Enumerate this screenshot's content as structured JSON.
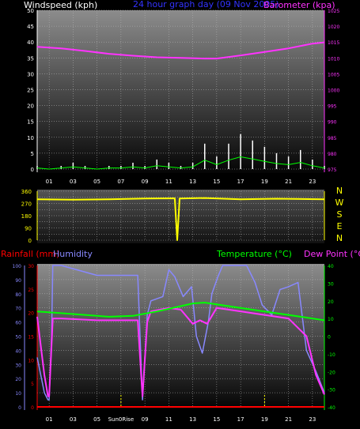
{
  "colors": {
    "background": "#000000",
    "wind": "#ffffff",
    "barometer": "#ff33ff",
    "direction": "#ffff00",
    "rainfall": "#ff0000",
    "humidity": "#8888ff",
    "temperature": "#00ff00",
    "dewpoint": "#ff33ff",
    "axis_white": "#ffffff",
    "axis_yellow": "#ffff00",
    "axis_green": "#00ff00",
    "axis_red": "#ff0000",
    "axis_blue": "#8888ff",
    "title_blue": "#3333ff"
  },
  "header": {
    "windspeed_label": "Windspeed (kph)",
    "title": "24 hour graph day  (09 Nov 2005)",
    "barometer_label": "Barometer (kpa)"
  },
  "mid": {
    "compass": [
      "N",
      "W",
      "S",
      "E",
      "N"
    ]
  },
  "lower": {
    "rainfall_label": "Rainfall (mm)",
    "humidity_label": "Humidity",
    "temperature_label": "Temperature (°C)",
    "dewpoint_label": "Dew Point (°C)",
    "sun0rise_label": "Sun0Rise"
  },
  "chart_data": [
    {
      "type": "line",
      "name": "wind-and-barometer",
      "x_hours": [
        0,
        3,
        6,
        9,
        12,
        15,
        18,
        21,
        24
      ],
      "xtick_labels": [
        "01",
        "03",
        "05",
        "07",
        "09",
        "11",
        "13",
        "15",
        "17",
        "19",
        "21",
        "23"
      ],
      "ylim_left": [
        0,
        50
      ],
      "yticks_left": [
        "0",
        "5",
        "10",
        "15",
        "20",
        "25",
        "30",
        "35",
        "40",
        "45",
        "50"
      ],
      "ylim_right": [
        975,
        1025
      ],
      "yticks_right": [
        "975",
        "980",
        "985",
        "990",
        "995",
        "1000",
        "1005",
        "1010",
        "1015",
        "1020",
        "1025"
      ],
      "series": [
        {
          "name": "Barometer",
          "x": [
            0,
            2,
            4,
            6,
            8,
            10,
            12,
            14,
            15,
            17,
            19,
            21,
            23,
            24
          ],
          "values": [
            1013.5,
            1013.0,
            1012.2,
            1011.3,
            1010.7,
            1010.2,
            1010.0,
            1009.8,
            1009.8,
            1010.8,
            1011.9,
            1013.0,
            1014.5,
            1014.9
          ]
        },
        {
          "name": "Windspeed",
          "x": [
            0,
            1,
            2,
            3,
            4,
            5,
            6,
            7,
            8,
            9,
            10,
            11,
            12,
            13,
            14,
            15,
            16,
            17,
            18,
            19,
            20,
            21,
            22,
            23,
            24
          ],
          "values": [
            1,
            0,
            1,
            2,
            1,
            0,
            1,
            1,
            2,
            1,
            3,
            2,
            1,
            2,
            8,
            4,
            8,
            11,
            9,
            7,
            5,
            4,
            6,
            3,
            1
          ]
        }
      ]
    },
    {
      "type": "line",
      "name": "wind-direction",
      "ylim": [
        0,
        360
      ],
      "yticks": [
        "0",
        "45",
        "90",
        "135",
        "180",
        "225",
        "270",
        "315",
        "360"
      ],
      "series": [
        {
          "name": "Direction",
          "x": [
            0,
            3,
            6,
            9,
            11.5,
            11.7,
            11.9,
            14,
            17,
            20,
            24
          ],
          "values": [
            300,
            297,
            301,
            306,
            308,
            0,
            306,
            310,
            300,
            305,
            300
          ]
        }
      ]
    },
    {
      "type": "line",
      "name": "temperature-humidity-rain",
      "ylim_left": [
        0,
        100
      ],
      "yticks_left": [
        "0",
        "10",
        "20",
        "30",
        "40",
        "50",
        "60",
        "70",
        "80",
        "90",
        "100"
      ],
      "ylim_left_inner": [
        0,
        30
      ],
      "yticks_left_inner": [
        "0",
        "5",
        "10",
        "15",
        "20",
        "25",
        "30"
      ],
      "ylim_right": [
        -40,
        40
      ],
      "yticks_right": [
        "-40",
        "-30",
        "-20",
        "-10",
        "0",
        "10",
        "20",
        "30",
        "40"
      ],
      "xtick_labels": [
        "01",
        "03",
        "05",
        "Sun0Rise",
        "09",
        "11",
        "13",
        "15",
        "17",
        "19",
        "21",
        "23"
      ],
      "series": [
        {
          "name": "Humidity",
          "x": [
            0,
            0.6,
            0.9,
            1.0,
            1.2,
            1.3,
            2.0,
            5,
            8.4,
            8.8,
            9.2,
            9.5,
            10.5,
            11,
            11.5,
            12.2,
            12.9,
            13.3,
            13.8,
            14.3,
            14.6,
            15.1,
            15.5,
            17.5,
            18.2,
            18.8,
            19.6,
            20.3,
            21.0,
            21.8,
            22.5,
            23.3,
            24
          ],
          "values": [
            35,
            10,
            5,
            5,
            50,
            100,
            100,
            93,
            93,
            5,
            65,
            75,
            78,
            97,
            92,
            78,
            85,
            50,
            38,
            60,
            80,
            92,
            100,
            100,
            88,
            72,
            65,
            83,
            85,
            88,
            40,
            25,
            10
          ]
        },
        {
          "name": "Temperature",
          "x": [
            0,
            2,
            4,
            6,
            8,
            10,
            12,
            13,
            14,
            15,
            17,
            19,
            21,
            23,
            24
          ],
          "values": [
            14,
            13,
            12,
            11,
            11.5,
            14,
            17,
            18.5,
            19,
            18,
            16,
            14,
            12,
            10,
            9
          ]
        },
        {
          "name": "Dew Point",
          "x": [
            0,
            0.6,
            0.9,
            1.0,
            1.3,
            2,
            5,
            8.4,
            8.8,
            9.2,
            9.5,
            11,
            12,
            13,
            13.6,
            14.2,
            15,
            16,
            19,
            21,
            22.5,
            23.3,
            24
          ],
          "values": [
            11,
            -22,
            -34,
            -34,
            10,
            10,
            9,
            9,
            -34,
            8,
            14,
            16,
            15,
            7,
            9,
            7,
            16,
            15,
            12,
            10,
            0,
            -22,
            -33
          ]
        },
        {
          "name": "Rainfall",
          "x": [
            0,
            24
          ],
          "values": [
            0,
            0
          ]
        }
      ]
    }
  ]
}
